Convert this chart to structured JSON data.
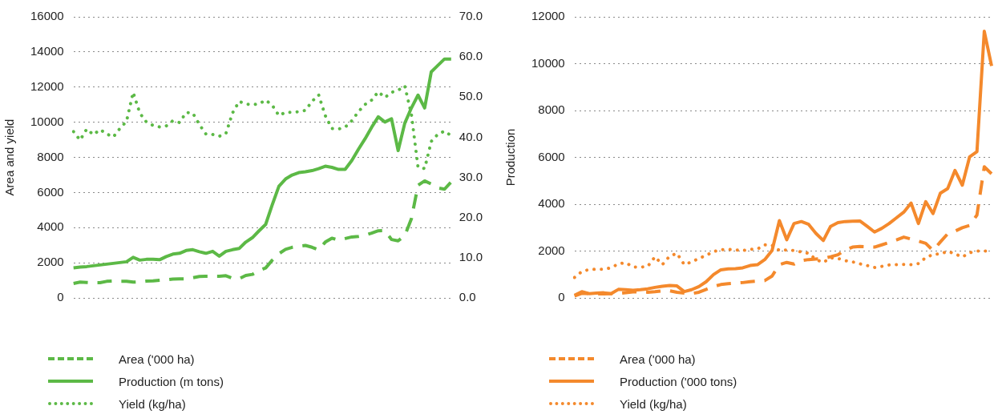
{
  "chart_data": [
    {
      "type": "line",
      "ylabel": "Area and yield",
      "legend": "bottom",
      "grid": "y",
      "marker": "none",
      "categories": [
        null,
        null,
        null,
        null,
        null,
        null,
        null,
        null,
        null,
        null,
        null,
        null,
        null,
        null,
        null,
        null,
        null,
        null,
        null,
        null,
        null,
        null,
        null,
        null,
        null,
        null,
        null,
        null,
        null,
        null,
        null,
        null,
        null,
        null,
        null,
        null,
        null,
        null,
        null,
        null,
        null,
        null,
        null,
        null,
        null,
        null,
        null,
        null,
        null,
        null,
        null,
        null,
        null,
        null,
        null,
        null,
        null,
        null
      ],
      "ylim": [
        0,
        16000
      ],
      "yticks": [
        0,
        2000,
        4000,
        6000,
        8000,
        10000,
        12000,
        14000,
        16000
      ],
      "y2lim": [
        0,
        70
      ],
      "y2ticks": [
        {
          "value": 0,
          "label": "0.0"
        },
        {
          "value": 10,
          "label": "10.0"
        },
        {
          "value": 20,
          "label": "20.0"
        },
        {
          "value": 30,
          "label": "30.0"
        },
        {
          "value": 40,
          "label": "40.0"
        },
        {
          "value": 50,
          "label": "50.0"
        },
        {
          "value": 60,
          "label": "60.0"
        },
        {
          "value": 70,
          "label": "70.0"
        }
      ],
      "series": [
        {
          "name": "Area ('000 ha)",
          "color": "#5cb946",
          "line_style": "dashed",
          "values": [
            823,
            897,
            882,
            867,
            867,
            941,
            956,
            941,
            941,
            897,
            911,
            956,
            970,
            1000,
            1029,
            1073,
            1088,
            1088,
            1147,
            1220,
            1235,
            1235,
            1235,
            1264,
            1117,
            1088,
            1279,
            1338,
            1558,
            1705,
            2146,
            2514,
            2764,
            2881,
            2940,
            2984,
            2881,
            2734,
            3175,
            3396,
            3293,
            3381,
            3469,
            3499,
            3572,
            3690,
            3822,
            3837,
            3322,
            3249,
            3543,
            4498,
            6409,
            6659,
            6483,
            6262,
            6189,
            6600
          ]
        },
        {
          "name": "Production (m tons)",
          "color": "#5cb946",
          "line_style": "solid",
          "axis": "y2",
          "values": [
            7.5,
            7.7,
            7.8,
            8.0,
            8.2,
            8.4,
            8.6,
            8.8,
            9.0,
            10.1,
            9.4,
            9.6,
            9.6,
            9.5,
            10.3,
            10.9,
            11.1,
            11.8,
            12.0,
            11.5,
            11.1,
            11.6,
            10.4,
            11.6,
            12.0,
            12.3,
            13.9,
            15.0,
            16.7,
            18.3,
            23.2,
            27.8,
            29.6,
            30.6,
            31.2,
            31.4,
            31.7,
            32.2,
            32.8,
            32.5,
            32.0,
            32.0,
            34.2,
            37.0,
            39.6,
            42.5,
            45.1,
            43.8,
            44.6,
            36.7,
            43.5,
            47.3,
            50.5,
            47.3,
            56.3,
            57.9,
            59.5,
            59.5
          ]
        },
        {
          "name": "Yield (kg/ha)",
          "color": "#5cb946",
          "line_style": "dotted",
          "values": [
            9467,
            8982,
            9614,
            9290,
            9584,
            9335,
            9158,
            9643,
            10055,
            11701,
            10525,
            10011,
            9820,
            9731,
            9790,
            10084,
            9981,
            10555,
            10525,
            9864,
            9320,
            9305,
            9202,
            9349,
            10525,
            11187,
            11040,
            10996,
            11040,
            11260,
            10966,
            10378,
            10569,
            10569,
            10599,
            10672,
            11187,
            11554,
            10378,
            9643,
            9614,
            9717,
            10084,
            10599,
            11010,
            11260,
            11731,
            11407,
            11701,
            11819,
            12069,
            10452,
            7438,
            7365,
            8908,
            9320,
            9496,
            9232
          ]
        }
      ]
    },
    {
      "type": "line",
      "ylabel": "Production",
      "legend": "bottom",
      "grid": "y",
      "marker": "none",
      "categories": [
        null,
        null,
        null,
        null,
        null,
        null,
        null,
        null,
        null,
        null,
        null,
        null,
        null,
        null,
        null,
        null,
        null,
        null,
        null,
        null,
        null,
        null,
        null,
        null,
        null,
        null,
        null,
        null,
        null,
        null,
        null,
        null,
        null,
        null,
        null,
        null,
        null,
        null,
        null,
        null,
        null,
        null,
        null,
        null,
        null,
        null,
        null,
        null,
        null,
        null,
        null,
        null,
        null,
        null,
        null,
        null,
        null,
        null
      ],
      "ylim": [
        0,
        12000
      ],
      "yticks": [
        0,
        2000,
        4000,
        6000,
        8000,
        10000,
        12000
      ],
      "series": [
        {
          "name": "Area ('000 ha)",
          "color": "#f4892c",
          "line_style": "dashed",
          "values": [
            85,
            194,
            182,
            170,
            170,
            182,
            194,
            218,
            255,
            255,
            242,
            267,
            303,
            303,
            242,
            206,
            182,
            242,
            364,
            485,
            570,
            606,
            630,
            654,
            691,
            715,
            739,
            933,
            1418,
            1515,
            1442,
            1588,
            1636,
            1660,
            1685,
            1757,
            1842,
            2048,
            2169,
            2194,
            2182,
            2169,
            2266,
            2363,
            2472,
            2594,
            2509,
            2424,
            2327,
            2024,
            2388,
            2739,
            2848,
            2994,
            3091,
            3539,
            5600,
            5297
          ]
        },
        {
          "name": "Production ('000 tons)",
          "color": "#f4892c",
          "line_style": "solid",
          "values": [
            109,
            267,
            182,
            206,
            218,
            182,
            364,
            351,
            327,
            351,
            388,
            448,
            497,
            533,
            509,
            267,
            351,
            485,
            691,
            994,
            1200,
            1236,
            1248,
            1285,
            1382,
            1418,
            1636,
            2024,
            3297,
            2485,
            3175,
            3260,
            3139,
            2751,
            2448,
            3054,
            3212,
            3260,
            3272,
            3285,
            3054,
            2812,
            2969,
            3175,
            3418,
            3660,
            4048,
            3175,
            4109,
            3600,
            4472,
            4666,
            5442,
            4812,
            6024,
            6242,
            11381,
            9902
          ]
        },
        {
          "name": "Yield (kg/ha)",
          "color": "#f4892c",
          "line_style": "dotted",
          "values": [
            873,
            1127,
            1212,
            1224,
            1224,
            1285,
            1454,
            1503,
            1321,
            1309,
            1345,
            1757,
            1418,
            1782,
            1903,
            1418,
            1539,
            1685,
            1818,
            1976,
            2060,
            2073,
            2048,
            2024,
            2073,
            2085,
            2266,
            2242,
            2024,
            2048,
            2024,
            1963,
            1903,
            1636,
            1515,
            1709,
            1685,
            1588,
            1539,
            1454,
            1382,
            1297,
            1345,
            1406,
            1418,
            1430,
            1418,
            1466,
            1721,
            1854,
            1879,
            1988,
            1879,
            1745,
            1927,
            1999,
            1999,
            1999
          ]
        }
      ]
    }
  ]
}
